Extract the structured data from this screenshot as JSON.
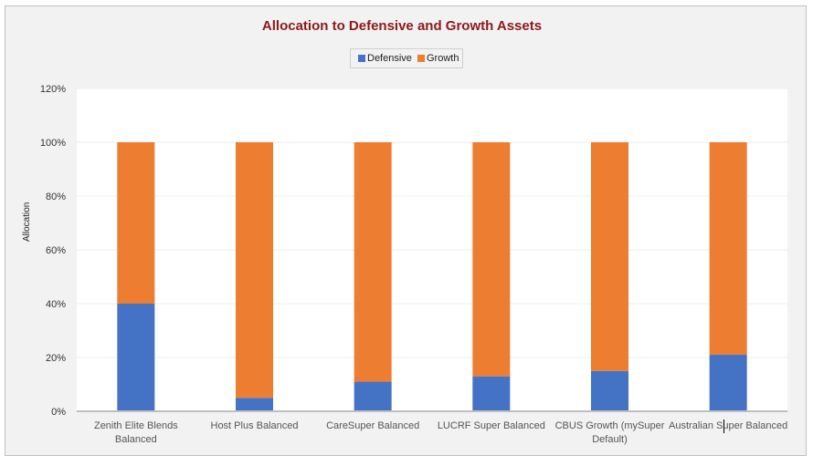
{
  "chart_data": {
    "type": "bar",
    "stacked": true,
    "title": "Allocation to Defensive and Growth Assets",
    "xlabel": "",
    "ylabel": "Allocation",
    "ylim": [
      0,
      120
    ],
    "yticks": [
      "0%",
      "20%",
      "40%",
      "60%",
      "80%",
      "100%",
      "120%"
    ],
    "legend_position": "top-center",
    "categories": [
      [
        "Zenith Elite Blends",
        "Balanced"
      ],
      [
        "Host Plus Balanced"
      ],
      [
        "CareSuper Balanced"
      ],
      [
        "LUCRF Super Balanced"
      ],
      [
        "CBUS Growth (mySuper",
        "Default)"
      ],
      [
        "Australian Super Balanced"
      ]
    ],
    "series": [
      {
        "name": "Defensive",
        "color": "#4472c4",
        "values": [
          40,
          5,
          11,
          13,
          15,
          21
        ]
      },
      {
        "name": "Growth",
        "color": "#ed7d31",
        "values": [
          60,
          95,
          89,
          87,
          85,
          79
        ]
      }
    ]
  }
}
